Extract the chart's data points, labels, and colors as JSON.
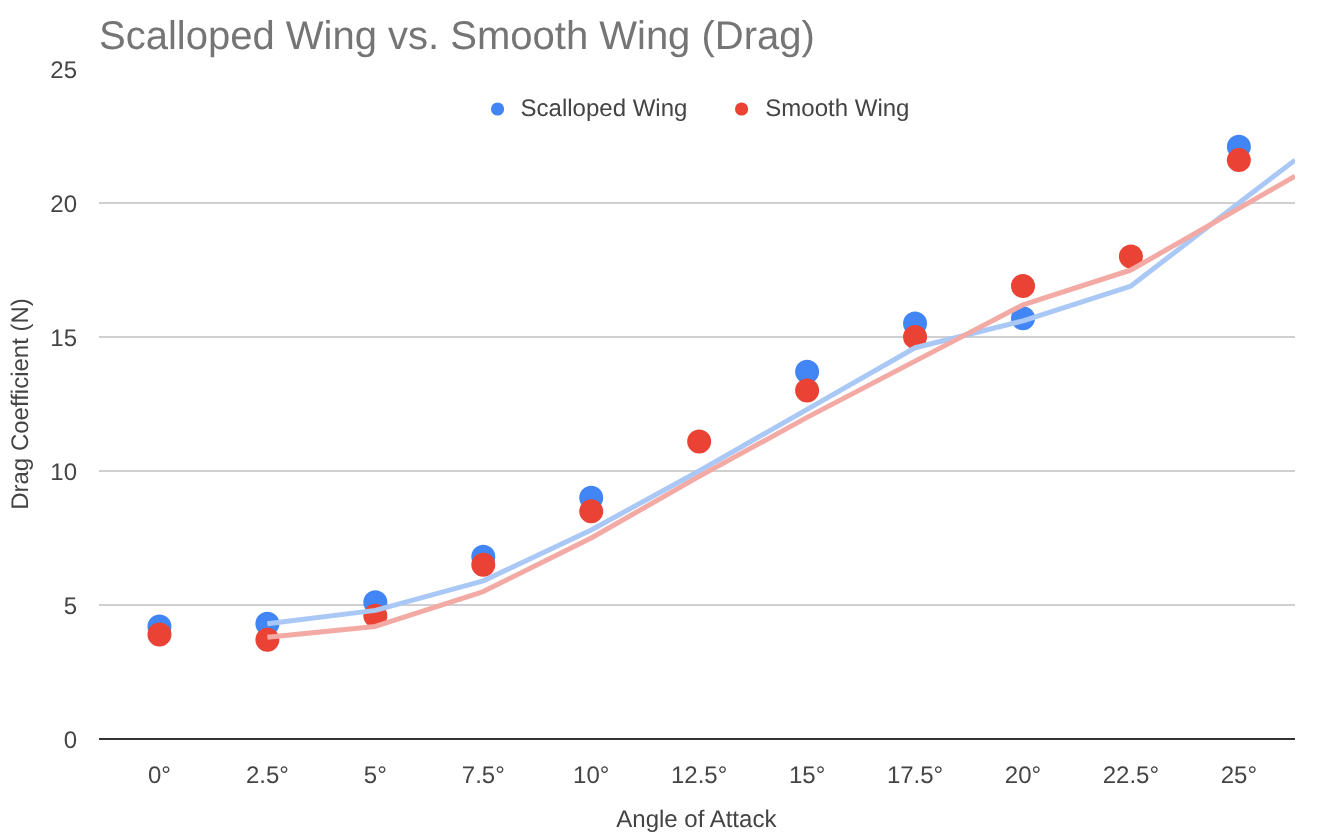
{
  "chart_data": {
    "type": "scatter",
    "title": "Scalloped Wing vs. Smooth Wing (Drag)",
    "xlabel": "Angle of Attack",
    "ylabel": "Drag Coefficient (N)",
    "x": [
      0,
      2.5,
      5,
      7.5,
      10,
      12.5,
      15,
      17.5,
      20,
      22.5,
      25
    ],
    "series": [
      {
        "name": "Scalloped Wing",
        "color": "#4285f4",
        "values": [
          4.2,
          4.3,
          5.1,
          6.8,
          9.0,
          null,
          13.7,
          15.5,
          15.7,
          null,
          22.1
        ]
      },
      {
        "name": "Smooth Wing",
        "color": "#ea4335",
        "values": [
          3.9,
          3.7,
          4.6,
          6.5,
          8.5,
          11.1,
          13.0,
          15.0,
          16.9,
          18.0,
          21.6
        ]
      },
      {
        "type": "line",
        "marker": "none",
        "color": "#a9c8f5",
        "x": [
          2.5,
          5,
          7.5,
          10,
          12.5,
          15,
          17.5,
          20,
          22.5,
          25,
          26.3
        ],
        "values": [
          4.3,
          4.8,
          5.9,
          7.8,
          10.0,
          12.3,
          14.6,
          15.6,
          16.9,
          20.0,
          21.6
        ]
      },
      {
        "type": "line",
        "marker": "none",
        "color": "#f4aaa4",
        "x": [
          2.5,
          5,
          7.5,
          10,
          12.5,
          15,
          17.5,
          20,
          22.5,
          25,
          26.3
        ],
        "values": [
          3.8,
          4.2,
          5.5,
          7.5,
          9.8,
          12.0,
          14.1,
          16.2,
          17.5,
          19.8,
          21.0
        ]
      }
    ],
    "xlim": [
      -1.4,
      26.3
    ],
    "xticks": [
      {
        "value": 0,
        "label": "0°"
      },
      {
        "value": 2.5,
        "label": "2.5°"
      },
      {
        "value": 5,
        "label": "5°"
      },
      {
        "value": 7.5,
        "label": "7.5°"
      },
      {
        "value": 10,
        "label": "10°"
      },
      {
        "value": 12.5,
        "label": "12.5°"
      },
      {
        "value": 15,
        "label": "15°"
      },
      {
        "value": 17.5,
        "label": "17.5°"
      },
      {
        "value": 20,
        "label": "20°"
      },
      {
        "value": 22.5,
        "label": "22.5°"
      },
      {
        "value": 25,
        "label": "25°"
      }
    ],
    "ylim": [
      0,
      25
    ],
    "yticks": [
      0,
      5,
      10,
      15,
      20,
      25
    ],
    "grid": "y",
    "legend": "top",
    "marker": "circle"
  }
}
